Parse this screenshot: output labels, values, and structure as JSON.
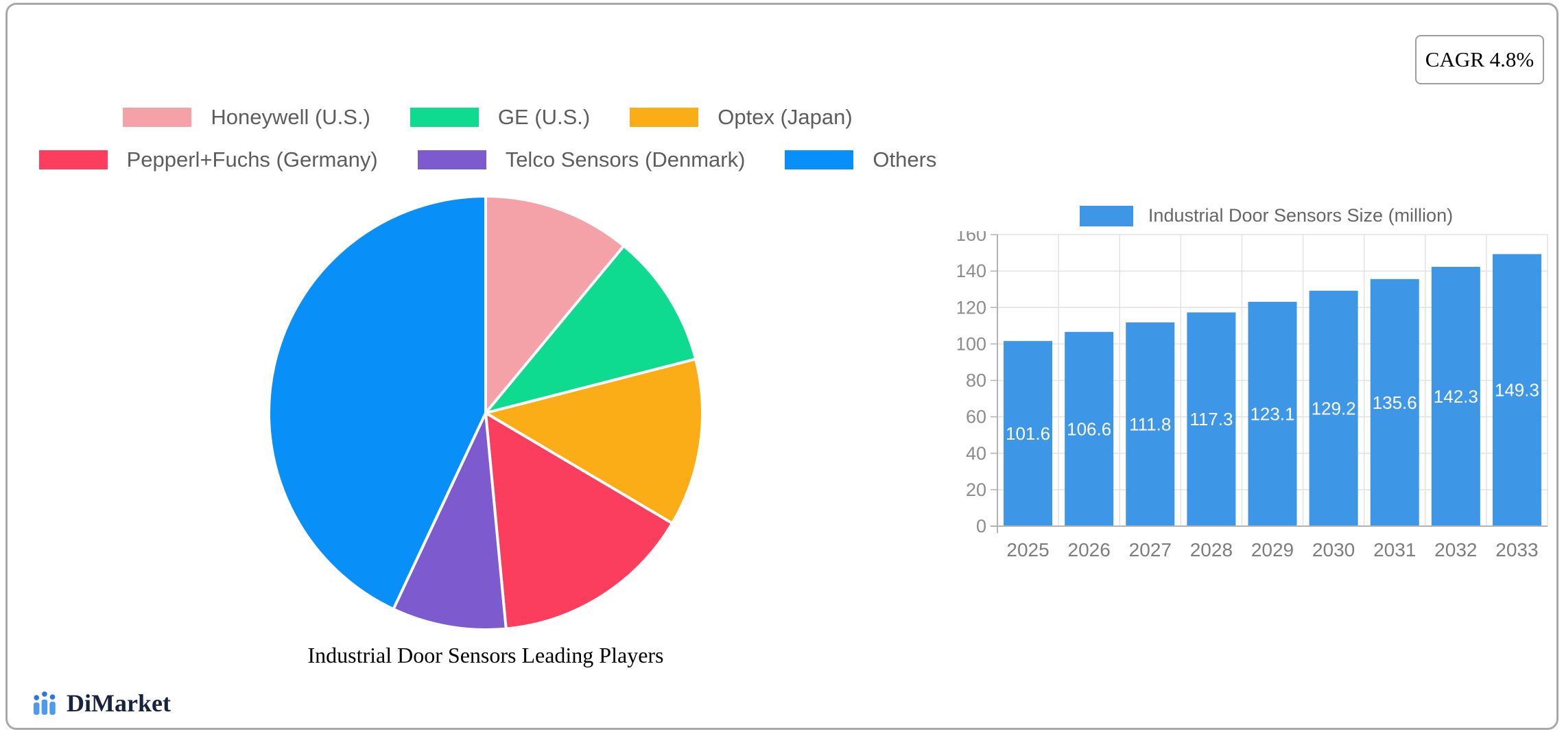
{
  "card": {
    "cagr_label": "CAGR 4.8%"
  },
  "logo": {
    "text": "DiMarket",
    "icon": "bar-chart-logo-icon",
    "bar_color": "#4d9af0",
    "dot_color": "#2e77e3",
    "text_color": "#18243f"
  },
  "chart_data": [
    {
      "type": "pie",
      "title": "Industrial Door Sensors Leading Players",
      "legend_position": "top",
      "direction": "clockwise",
      "start_angle_deg": 0,
      "divider_color": "#ffffff",
      "labels": [
        "Honeywell (U.S.)",
        "GE (U.S.)",
        "Optex (Japan)",
        "Pepperl+Fuchs (Germany)",
        "Telco Sensors (Denmark)",
        "Others"
      ],
      "values_percent": [
        11,
        10,
        12.5,
        15,
        8.5,
        43
      ],
      "colors": [
        "#f4a1a7",
        "#0eda90",
        "#fbad17",
        "#fb3e5d",
        "#7d5ace",
        "#0990f8"
      ]
    },
    {
      "type": "bar",
      "series_label": "Industrial Door Sensors Size (million)",
      "legend_position": "top",
      "categories": [
        "2025",
        "2026",
        "2027",
        "2028",
        "2029",
        "2030",
        "2031",
        "2032",
        "2033"
      ],
      "values": [
        101.6,
        106.6,
        111.8,
        117.3,
        123.1,
        129.2,
        135.6,
        142.3,
        149.3
      ],
      "bar_color": "#3e96e6",
      "value_label_color": "#ffffff",
      "ylim": [
        0,
        160
      ],
      "ytick_step": 20,
      "grid": true,
      "axis_color": "#b3b3b3",
      "grid_color": "#e2e2e2",
      "tick_label_color": "#8c8c8c",
      "xtick_label_color": "#7d7d7d"
    }
  ]
}
